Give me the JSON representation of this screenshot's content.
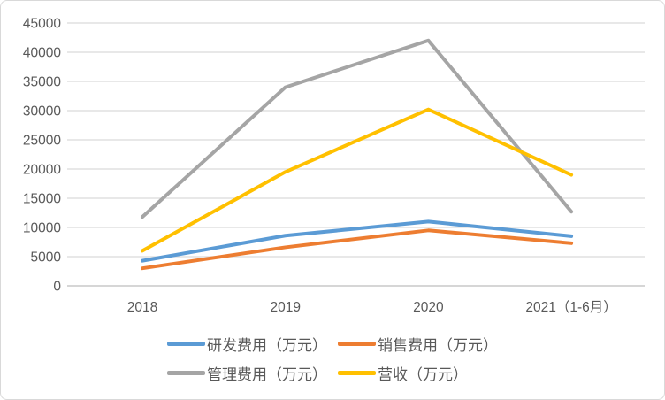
{
  "chart_data": {
    "type": "line",
    "title": "",
    "xlabel": "",
    "ylabel": "",
    "categories": [
      "2018",
      "2019",
      "2020",
      "2021（1-6月）"
    ],
    "series": [
      {
        "key": "rd-expense",
        "name": "研发费用（万元）",
        "color": "#5B9BD5",
        "values": [
          4300,
          8600,
          11000,
          8500
        ]
      },
      {
        "key": "sales-expense",
        "name": "销售费用（万元）",
        "color": "#ED7D31",
        "values": [
          3000,
          6600,
          9500,
          7300
        ]
      },
      {
        "key": "admin-expense",
        "name": "管理费用（万元）",
        "color": "#A5A5A5",
        "values": [
          11800,
          34000,
          42000,
          12700
        ]
      },
      {
        "key": "revenue",
        "name": "营收（万元）",
        "color": "#FFC000",
        "values": [
          6000,
          19500,
          30200,
          19000
        ]
      }
    ],
    "ylim": [
      0,
      45000
    ],
    "ytick_step": 5000,
    "yticks": [
      0,
      5000,
      10000,
      15000,
      20000,
      25000,
      30000,
      35000,
      40000,
      45000
    ],
    "ytick_labels": [
      "0",
      "5000",
      "10000",
      "15000",
      "20000",
      "25000",
      "30000",
      "35000",
      "40000",
      "45000"
    ],
    "grid": true,
    "legend_position": "bottom",
    "legend_rows": [
      [
        0,
        1
      ],
      [
        2,
        3
      ]
    ]
  },
  "colors": {
    "background": "#FFFFFF",
    "frame_border": "#D9D9D9",
    "gridline": "#DADADA",
    "axis_line": "#C9C9C9",
    "text": "#595959"
  }
}
